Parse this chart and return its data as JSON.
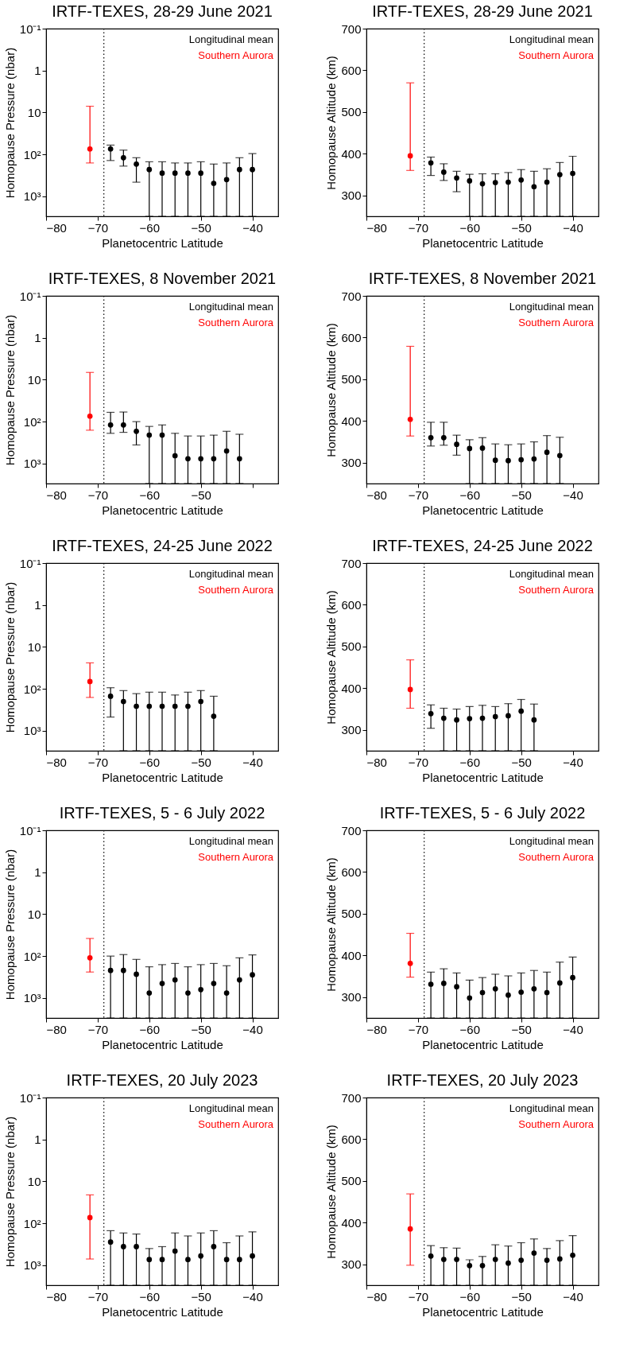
{
  "chart_data": [
    {
      "type": "scatter",
      "title": "IRTF-TEXES, 28-29 June 2021",
      "xlabel": "Planetocentric Latitude",
      "ylabel": "Homopause Pressure (nbar)",
      "xlim": [
        -80,
        -35
      ],
      "xticks": [
        -80,
        -70,
        -60,
        -50,
        -40
      ],
      "ylim": [
        3000,
        0.1
      ],
      "yticks": [
        {
          "value": 0.1,
          "label": "10⁻¹"
        },
        1,
        10,
        {
          "value": 100,
          "label": "10²"
        },
        {
          "value": 1000,
          "label": "10³"
        }
      ],
      "log": "y",
      "legend": "top right",
      "marker": "circle",
      "ref_lines": [
        {
          "axis": "x",
          "value": -68.8,
          "color": "#000000",
          "line_style": "dotted"
        }
      ],
      "series": [
        {
          "name": "Longitudinal mean",
          "color": "#000000",
          "x": [
            -67.5,
            -65,
            -62.5,
            -60,
            -57.5,
            -55,
            -52.5,
            -50,
            -47.5,
            -45,
            -42.5,
            -40
          ],
          "values": [
            74,
            120,
            170,
            230,
            280,
            280,
            280,
            280,
            490,
            400,
            230,
            230
          ],
          "errors": [
            [
              60,
              140
            ],
            [
              79,
              190
            ],
            [
              120,
              460
            ],
            [
              150,
              3000
            ],
            [
              150,
              3000
            ],
            [
              160,
              3000
            ],
            [
              160,
              3000
            ],
            [
              150,
              3000
            ],
            [
              170,
              3000
            ],
            [
              160,
              3000
            ],
            [
              120,
              3000
            ],
            [
              96,
              3000
            ]
          ]
        },
        {
          "name": "Southern Aurora",
          "color": "#ff0000",
          "x": [
            -71.5
          ],
          "values": [
            74
          ],
          "errors": [
            [
              7.1,
              160
            ]
          ]
        }
      ]
    },
    {
      "type": "scatter",
      "title": "IRTF-TEXES, 28-29 June 2021",
      "xlabel": "Planetocentric Latitude",
      "ylabel": "Homopause Altitude (km)",
      "xlim": [
        -80,
        -35
      ],
      "xticks": [
        -80,
        -70,
        -60,
        -50,
        -40
      ],
      "ylim": [
        250,
        700
      ],
      "yticks": [
        300,
        400,
        500,
        600,
        700
      ],
      "legend": "top right",
      "marker": "circle",
      "ref_lines": [
        {
          "axis": "x",
          "value": -68.8,
          "color": "#000000",
          "line_style": "dotted"
        }
      ],
      "series": [
        {
          "name": "Longitudinal mean",
          "color": "#000000",
          "x": [
            -67.5,
            -65,
            -62.5,
            -60,
            -57.5,
            -55,
            -52.5,
            -50,
            -47.5,
            -45,
            -42.5,
            -40
          ],
          "values": [
            378,
            356,
            342,
            335,
            328,
            331,
            332,
            337,
            321,
            332,
            350,
            353
          ],
          "errors": [
            [
              348,
              392
            ],
            [
              336,
              376
            ],
            [
              309,
              358
            ],
            [
              250,
              351
            ],
            [
              250,
              352
            ],
            [
              250,
              352
            ],
            [
              250,
              355
            ],
            [
              250,
              362
            ],
            [
              250,
              358
            ],
            [
              250,
              364
            ],
            [
              250,
              379
            ],
            [
              250,
              394
            ]
          ]
        },
        {
          "name": "Southern Aurora",
          "color": "#ff0000",
          "x": [
            -71.5
          ],
          "values": [
            395
          ],
          "errors": [
            [
              360,
              570
            ]
          ]
        }
      ]
    },
    {
      "type": "scatter",
      "title": "IRTF-TEXES, 8 November 2021",
      "xlabel": "Planetocentric Latitude",
      "ylabel": "Homopause Pressure (nbar)",
      "xlim": [
        -80,
        -35
      ],
      "xticks": [
        -80,
        -70,
        -60,
        -50,
        {
          "value": -40,
          "label": null
        }
      ],
      "ylim": [
        3000,
        0.1
      ],
      "yticks": [
        {
          "value": 0.1,
          "label": "10⁻¹"
        },
        1,
        10,
        {
          "value": 100,
          "label": "10²"
        },
        {
          "value": 1000,
          "label": "10³"
        }
      ],
      "log": "y",
      "legend": "top right",
      "marker": "circle",
      "ref_lines": [
        {
          "axis": "x",
          "value": -68.8,
          "color": "#000000",
          "line_style": "dotted"
        }
      ],
      "series": [
        {
          "name": "Longitudinal mean",
          "color": "#000000",
          "x": [
            -67.5,
            -65,
            -62.5,
            -60,
            -57.5,
            -55,
            -52.5,
            -50,
            -47.5,
            -45,
            -42.5
          ],
          "values": [
            120,
            120,
            170,
            210,
            210,
            650,
            770,
            770,
            770,
            500,
            770
          ],
          "errors": [
            [
              60,
              190
            ],
            [
              59,
              180
            ],
            [
              100,
              360
            ],
            [
              130,
              3000
            ],
            [
              120,
              3000
            ],
            [
              190,
              3000
            ],
            [
              220,
              3000
            ],
            [
              220,
              3000
            ],
            [
              210,
              3000
            ],
            [
              170,
              3000
            ],
            [
              200,
              3000
            ]
          ]
        },
        {
          "name": "Southern Aurora",
          "color": "#ff0000",
          "x": [
            -71.5
          ],
          "values": [
            74
          ],
          "errors": [
            [
              6.7,
              160
            ]
          ]
        }
      ]
    },
    {
      "type": "scatter",
      "title": "IRTF-TEXES, 8 November 2021",
      "xlabel": "Planetocentric Latitude",
      "ylabel": "Homopause Altitude (km)",
      "xlim": [
        -80,
        -35
      ],
      "xticks": [
        -80,
        -70,
        -60,
        -50,
        -40
      ],
      "ylim": [
        250,
        700
      ],
      "yticks": [
        300,
        400,
        500,
        600,
        700
      ],
      "legend": "top right",
      "marker": "circle",
      "ref_lines": [
        {
          "axis": "x",
          "value": -68.8,
          "color": "#000000",
          "line_style": "dotted"
        }
      ],
      "series": [
        {
          "name": "Longitudinal mean",
          "color": "#000000",
          "x": [
            -67.5,
            -65,
            -62.5,
            -60,
            -57.5,
            -55,
            -52.5,
            -50,
            -47.5,
            -45,
            -42.5
          ],
          "values": [
            360,
            360,
            344,
            334,
            335,
            306,
            305,
            307,
            309,
            325,
            317
          ],
          "errors": [
            [
              340,
              397
            ],
            [
              342,
              397
            ],
            [
              318,
              366
            ],
            [
              250,
              355
            ],
            [
              250,
              360
            ],
            [
              250,
              345
            ],
            [
              250,
              343
            ],
            [
              250,
              345
            ],
            [
              250,
              350
            ],
            [
              250,
              365
            ],
            [
              250,
              361
            ]
          ]
        },
        {
          "name": "Southern Aurora",
          "color": "#ff0000",
          "x": [
            -71.5
          ],
          "values": [
            404
          ],
          "errors": [
            [
              364,
              579
            ]
          ]
        }
      ]
    },
    {
      "type": "scatter",
      "title": "IRTF-TEXES, 24-25 June 2022",
      "xlabel": "Planetocentric Latitude",
      "ylabel": "Homopause Pressure (nbar)",
      "xlim": [
        -80,
        -35
      ],
      "xticks": [
        -80,
        -70,
        -60,
        -50,
        -40
      ],
      "ylim": [
        3000,
        0.1
      ],
      "yticks": [
        {
          "value": 0.1,
          "label": "10⁻¹"
        },
        1,
        10,
        {
          "value": 100,
          "label": "10²"
        },
        {
          "value": 1000,
          "label": "10³"
        }
      ],
      "log": "y",
      "legend": "top right",
      "marker": "circle",
      "ref_lines": [
        {
          "axis": "x",
          "value": -68.8,
          "color": "#000000",
          "line_style": "dotted"
        }
      ],
      "series": [
        {
          "name": "Longitudinal mean",
          "color": "#000000",
          "x": [
            -67.5,
            -65,
            -62.5,
            -60,
            -57.5,
            -55,
            -52.5,
            -50,
            -47.5
          ],
          "values": [
            150,
            200,
            260,
            260,
            260,
            260,
            260,
            200,
            450
          ],
          "errors": [
            [
              94,
              470
            ],
            [
              110,
              3000
            ],
            [
              130,
              3000
            ],
            [
              120,
              3000
            ],
            [
              120,
              3000
            ],
            [
              140,
              3000
            ],
            [
              120,
              3000
            ],
            [
              110,
              3000
            ],
            [
              150,
              3000
            ]
          ]
        },
        {
          "name": "Southern Aurora",
          "color": "#ff0000",
          "x": [
            -71.5
          ],
          "values": [
            67
          ],
          "errors": [
            [
              24,
              160
            ]
          ]
        }
      ]
    },
    {
      "type": "scatter",
      "title": "IRTF-TEXES, 24-25 June 2022",
      "xlabel": "Planetocentric Latitude",
      "ylabel": "Homopause Altitude (km)",
      "xlim": [
        -80,
        -35
      ],
      "xticks": [
        -80,
        -70,
        -60,
        -50,
        -40
      ],
      "ylim": [
        250,
        700
      ],
      "yticks": [
        300,
        400,
        500,
        600,
        700
      ],
      "legend": "top right",
      "marker": "circle",
      "ref_lines": [
        {
          "axis": "x",
          "value": -68.8,
          "color": "#000000",
          "line_style": "dotted"
        }
      ],
      "series": [
        {
          "name": "Longitudinal mean",
          "color": "#000000",
          "x": [
            -67.5,
            -65,
            -62.5,
            -60,
            -57.5,
            -55,
            -52.5,
            -50,
            -47.5
          ],
          "values": [
            339,
            328,
            324,
            327,
            328,
            332,
            334,
            345,
            324
          ],
          "errors": [
            [
              304,
              360
            ],
            [
              250,
              352
            ],
            [
              250,
              350
            ],
            [
              250,
              356
            ],
            [
              250,
              359
            ],
            [
              250,
              356
            ],
            [
              250,
              363
            ],
            [
              250,
              373
            ],
            [
              250,
              362
            ]
          ]
        },
        {
          "name": "Southern Aurora",
          "color": "#ff0000",
          "x": [
            -71.5
          ],
          "values": [
            397
          ],
          "errors": [
            [
              352,
              468
            ]
          ]
        }
      ]
    },
    {
      "type": "scatter",
      "title": "IRTF-TEXES, 5 - 6 July 2022",
      "xlabel": "Planetocentric Latitude",
      "ylabel": "Homopause Pressure (nbar)",
      "xlim": [
        -80,
        -35
      ],
      "xticks": [
        -80,
        -70,
        -60,
        -50,
        -40
      ],
      "ylim": [
        3000,
        0.1
      ],
      "yticks": [
        {
          "value": 0.1,
          "label": "10⁻¹"
        },
        1,
        10,
        {
          "value": 100,
          "label": "10²"
        },
        {
          "value": 1000,
          "label": "10³"
        }
      ],
      "log": "y",
      "legend": "top right",
      "marker": "circle",
      "ref_lines": [
        {
          "axis": "x",
          "value": -68.8,
          "color": "#000000",
          "line_style": "dotted"
        }
      ],
      "series": [
        {
          "name": "Longitudinal mean",
          "color": "#000000",
          "x": [
            -67.5,
            -65,
            -62.5,
            -60,
            -57.5,
            -55,
            -52.5,
            -50,
            -47.5,
            -45,
            -42.5,
            -40
          ],
          "values": [
            220,
            220,
            270,
            760,
            450,
            370,
            760,
            630,
            450,
            760,
            370,
            280
          ],
          "errors": [
            [
              100,
              3000
            ],
            [
              92,
              3000
            ],
            [
              120,
              3000
            ],
            [
              180,
              3000
            ],
            [
              160,
              3000
            ],
            [
              150,
              3000
            ],
            [
              180,
              3000
            ],
            [
              160,
              3000
            ],
            [
              150,
              3000
            ],
            [
              170,
              3000
            ],
            [
              110,
              3000
            ],
            [
              94,
              3000
            ]
          ]
        },
        {
          "name": "Southern Aurora",
          "color": "#ff0000",
          "x": [
            -71.5
          ],
          "values": [
            110
          ],
          "errors": [
            [
              38,
              240
            ]
          ]
        }
      ]
    },
    {
      "type": "scatter",
      "title": "IRTF-TEXES, 5 - 6 July 2022",
      "xlabel": "Planetocentric Latitude",
      "ylabel": "Homopause Altitude (km)",
      "xlim": [
        -80,
        -35
      ],
      "xticks": [
        -80,
        -70,
        -60,
        -50,
        -40
      ],
      "ylim": [
        250,
        700
      ],
      "yticks": [
        300,
        400,
        500,
        600,
        700
      ],
      "legend": "top right",
      "marker": "circle",
      "ref_lines": [
        {
          "axis": "x",
          "value": -68.8,
          "color": "#000000",
          "line_style": "dotted"
        }
      ],
      "series": [
        {
          "name": "Longitudinal mean",
          "color": "#000000",
          "x": [
            -67.5,
            -65,
            -62.5,
            -60,
            -57.5,
            -55,
            -52.5,
            -50,
            -47.5,
            -45,
            -42.5,
            -40
          ],
          "values": [
            331,
            333,
            325,
            298,
            311,
            320,
            305,
            312,
            320,
            311,
            334,
            347
          ],
          "errors": [
            [
              250,
              360
            ],
            [
              250,
              368
            ],
            [
              250,
              358
            ],
            [
              250,
              341
            ],
            [
              250,
              347
            ],
            [
              250,
              355
            ],
            [
              250,
              351
            ],
            [
              250,
              358
            ],
            [
              250,
              364
            ],
            [
              250,
              360
            ],
            [
              250,
              384
            ],
            [
              250,
              396
            ]
          ]
        },
        {
          "name": "Southern Aurora",
          "color": "#ff0000",
          "x": [
            -71.5
          ],
          "values": [
            381
          ],
          "errors": [
            [
              348,
              453
            ]
          ]
        }
      ]
    },
    {
      "type": "scatter",
      "title": "IRTF-TEXES, 20 July 2023",
      "xlabel": "Planetocentric Latitude",
      "ylabel": "Homopause Pressure (nbar)",
      "xlim": [
        -80,
        -35
      ],
      "xticks": [
        -80,
        -70,
        -60,
        -50,
        -40
      ],
      "ylim": [
        3000,
        0.1
      ],
      "yticks": [
        {
          "value": 0.1,
          "label": "10⁻¹"
        },
        1,
        10,
        {
          "value": 100,
          "label": "10²"
        },
        {
          "value": 1000,
          "label": "10³"
        }
      ],
      "log": "y",
      "legend": "top right",
      "marker": "circle",
      "ref_lines": [
        {
          "axis": "x",
          "value": -68.8,
          "color": "#000000",
          "line_style": "dotted"
        }
      ],
      "series": [
        {
          "name": "Longitudinal mean",
          "color": "#000000",
          "x": [
            -67.5,
            -65,
            -62.5,
            -60,
            -57.5,
            -55,
            -52.5,
            -50,
            -47.5,
            -45,
            -42.5,
            -40
          ],
          "values": [
            280,
            360,
            360,
            730,
            730,
            460,
            730,
            600,
            360,
            730,
            730,
            600
          ],
          "errors": [
            [
              150,
              3000
            ],
            [
              170,
              3000
            ],
            [
              180,
              3000
            ],
            [
              400,
              3000
            ],
            [
              360,
              3000
            ],
            [
              170,
              3000
            ],
            [
              200,
              3000
            ],
            [
              170,
              3000
            ],
            [
              150,
              3000
            ],
            [
              290,
              3000
            ],
            [
              200,
              3000
            ],
            [
              160,
              3000
            ]
          ]
        },
        {
          "name": "Southern Aurora",
          "color": "#ff0000",
          "x": [
            -71.5
          ],
          "values": [
            73
          ],
          "errors": [
            [
              21,
              710
            ]
          ]
        }
      ]
    },
    {
      "type": "scatter",
      "title": "IRTF-TEXES, 20 July 2023",
      "xlabel": "Planetocentric Latitude",
      "ylabel": "Homopause Altitude (km)",
      "xlim": [
        -80,
        -35
      ],
      "xticks": [
        -80,
        -70,
        -60,
        -50,
        -40
      ],
      "ylim": [
        250,
        700
      ],
      "yticks": [
        300,
        400,
        500,
        600,
        700
      ],
      "legend": "top right",
      "marker": "circle",
      "ref_lines": [
        {
          "axis": "x",
          "value": -68.8,
          "color": "#000000",
          "line_style": "dotted"
        }
      ],
      "series": [
        {
          "name": "Longitudinal mean",
          "color": "#000000",
          "x": [
            -67.5,
            -65,
            -62.5,
            -60,
            -57.5,
            -55,
            -52.5,
            -50,
            -47.5,
            -45,
            -42.5,
            -40
          ],
          "values": [
            320,
            312,
            312,
            297,
            297,
            312,
            303,
            310,
            327,
            310,
            313,
            322
          ],
          "errors": [
            [
              250,
              345
            ],
            [
              250,
              340
            ],
            [
              250,
              339
            ],
            [
              250,
              311
            ],
            [
              250,
              319
            ],
            [
              250,
              347
            ],
            [
              250,
              344
            ],
            [
              250,
              352
            ],
            [
              250,
              361
            ],
            [
              250,
              338
            ],
            [
              250,
              357
            ],
            [
              250,
              369
            ]
          ]
        },
        {
          "name": "Southern Aurora",
          "color": "#ff0000",
          "x": [
            -71.5
          ],
          "values": [
            385
          ],
          "errors": [
            [
              298,
              469
            ]
          ]
        }
      ]
    }
  ]
}
